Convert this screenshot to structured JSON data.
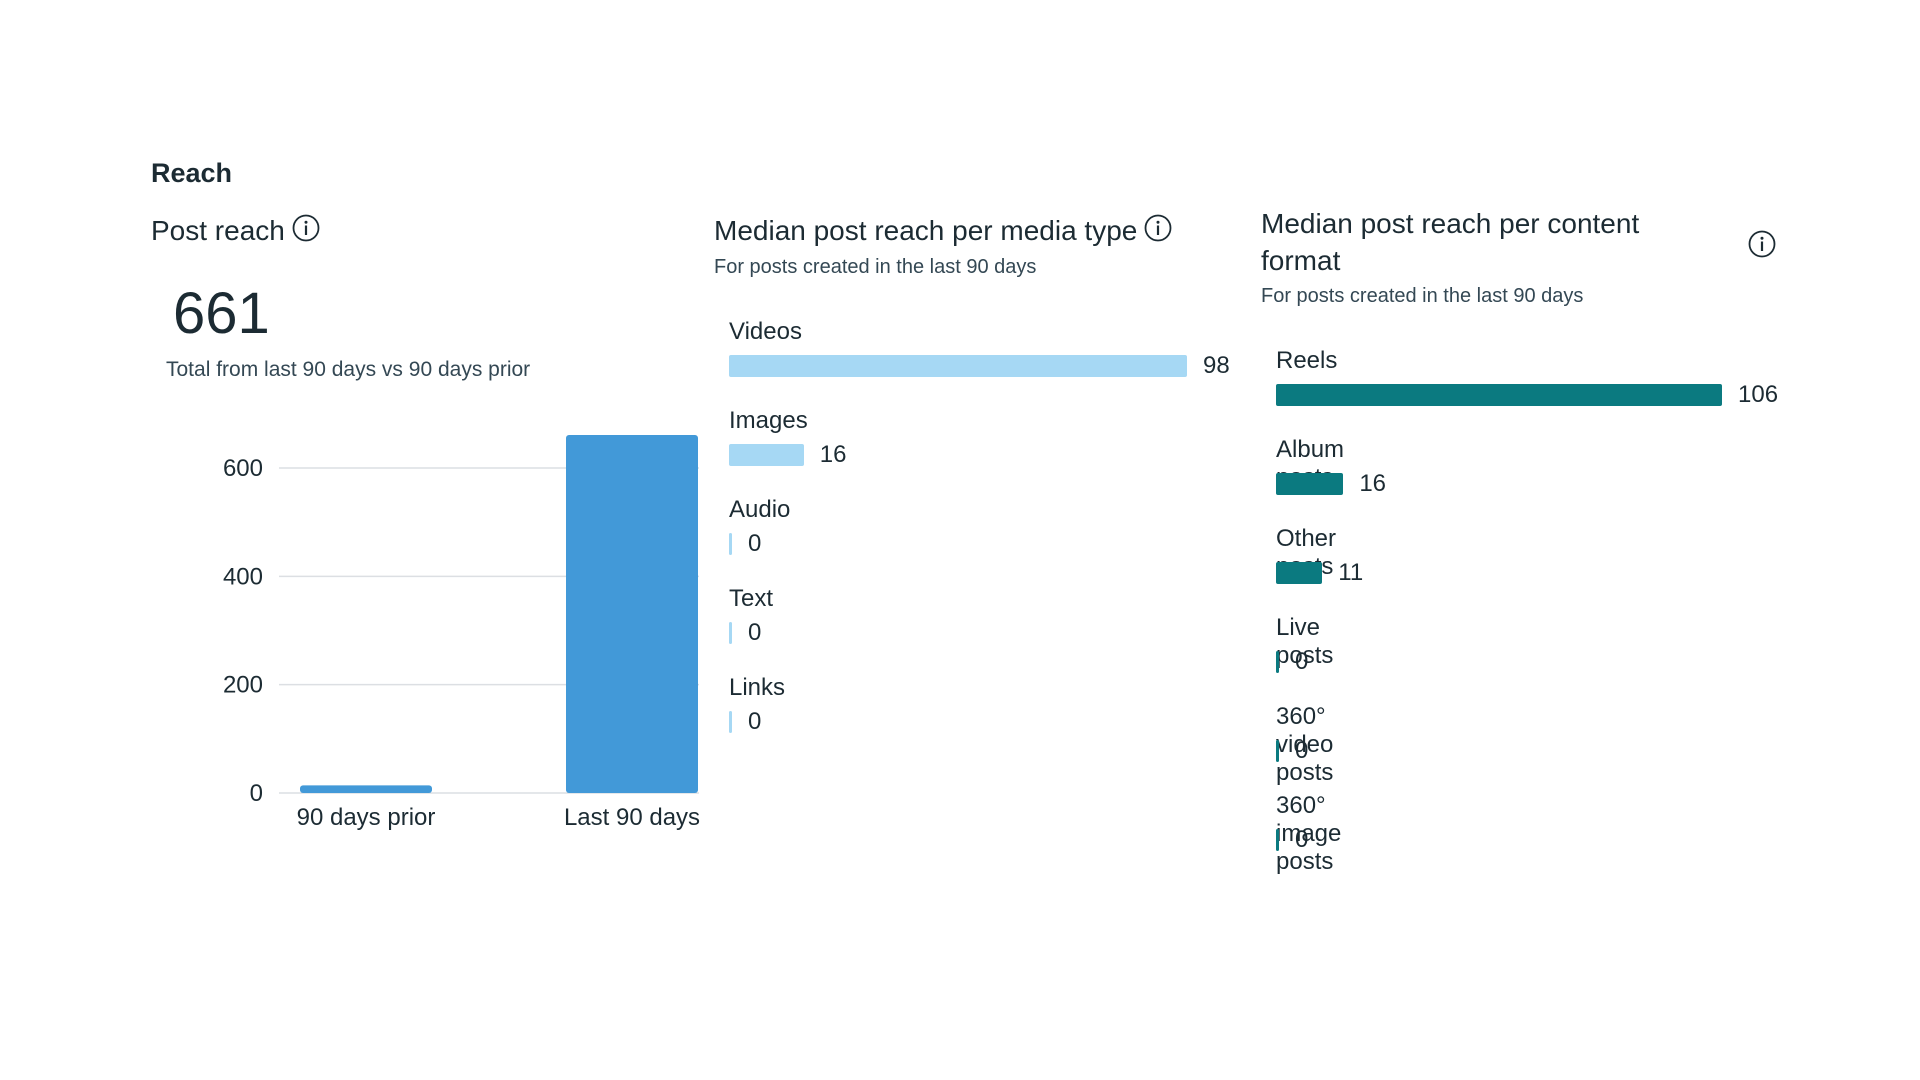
{
  "section_title": "Reach",
  "post_reach": {
    "title": "Post reach",
    "info_icon": "info-icon",
    "total": "661",
    "note": "Total from last 90 days vs 90 days prior"
  },
  "media_type": {
    "title": "Median post reach per media type",
    "info_icon": "info-icon",
    "subtitle": "For posts created in the last 90 days"
  },
  "content_format": {
    "title": "Median post reach per content format",
    "info_icon": "info-icon",
    "subtitle": "For posts created in the last 90 days"
  },
  "colors": {
    "reach_bar": "#4299d8",
    "media_bar": "#a6d8f4",
    "format_bar": "#0b7a80",
    "grid": "#dcdfe3"
  },
  "chart_data": [
    {
      "type": "bar",
      "categories": [
        "90 days prior",
        "Last 90 days"
      ],
      "values": [
        14,
        661
      ],
      "yticks": [
        0,
        200,
        400,
        600
      ],
      "ylim": [
        0,
        661
      ],
      "grid": true
    },
    {
      "type": "bar",
      "orientation": "horizontal",
      "categories": [
        "Videos",
        "Images",
        "Audio",
        "Text",
        "Links"
      ],
      "values": [
        98,
        16,
        0,
        0,
        0
      ],
      "xlim": [
        0,
        98
      ]
    },
    {
      "type": "bar",
      "orientation": "horizontal",
      "categories": [
        "Reels",
        "Album posts",
        "Other posts",
        "Live posts",
        "360° video posts",
        "360° image posts"
      ],
      "values": [
        106,
        16,
        11,
        0,
        0,
        0
      ],
      "xlim": [
        0,
        106
      ]
    }
  ]
}
